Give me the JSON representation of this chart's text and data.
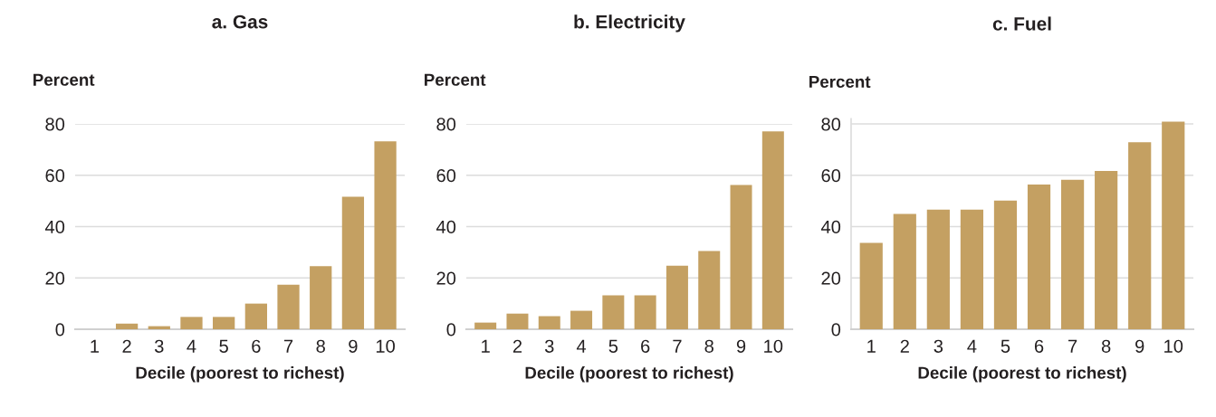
{
  "chart_data": [
    {
      "type": "bar",
      "title": "a. Gas",
      "ylabel": "Percent",
      "xlabel": "Decile (poorest to richest)",
      "categories": [
        "1",
        "2",
        "3",
        "4",
        "5",
        "6",
        "7",
        "8",
        "9",
        "10"
      ],
      "color": "#c4a062",
      "values": [
        0,
        2.2,
        1.2,
        4.8,
        4.8,
        10,
        17.4,
        24.6,
        51.6,
        73.2
      ],
      "ylim": [
        0,
        80
      ],
      "yticks": [
        0,
        20,
        40,
        60,
        80
      ],
      "grid": "y"
    },
    {
      "type": "bar",
      "title": "b. Electricity",
      "ylabel": "Percent",
      "xlabel": "Decile (poorest to richest)",
      "categories": [
        "1",
        "2",
        "3",
        "4",
        "5",
        "6",
        "7",
        "8",
        "9",
        "10"
      ],
      "color": "#c4a062",
      "values": [
        2.6,
        6.1,
        5.1,
        7.2,
        13.2,
        13.2,
        24.8,
        30.5,
        56.2,
        77.1
      ],
      "ylim": [
        0,
        80
      ],
      "yticks": [
        0,
        20,
        40,
        60,
        80
      ],
      "grid": "y"
    },
    {
      "type": "bar",
      "title": "c. Fuel",
      "ylabel": "Percent",
      "xlabel": "Decile (poorest to richest)",
      "categories": [
        "1",
        "2",
        "3",
        "4",
        "5",
        "6",
        "7",
        "8",
        "9",
        "10"
      ],
      "color": "#c4a062",
      "values": [
        33.7,
        44.9,
        46.6,
        46.6,
        50.1,
        56.4,
        58.2,
        61.7,
        72.9,
        80.9
      ],
      "ylim": [
        0,
        82
      ],
      "yticks": [
        0,
        20,
        40,
        60,
        80
      ],
      "grid": "y"
    }
  ]
}
